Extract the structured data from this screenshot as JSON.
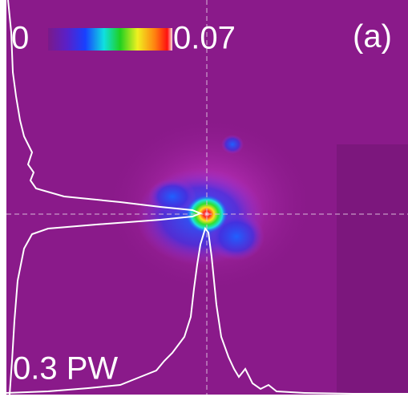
{
  "colorbar": {
    "min_label": "0",
    "max_label": "0.07"
  },
  "panel_label": "(a)",
  "annotation": "0.3 PW"
}
